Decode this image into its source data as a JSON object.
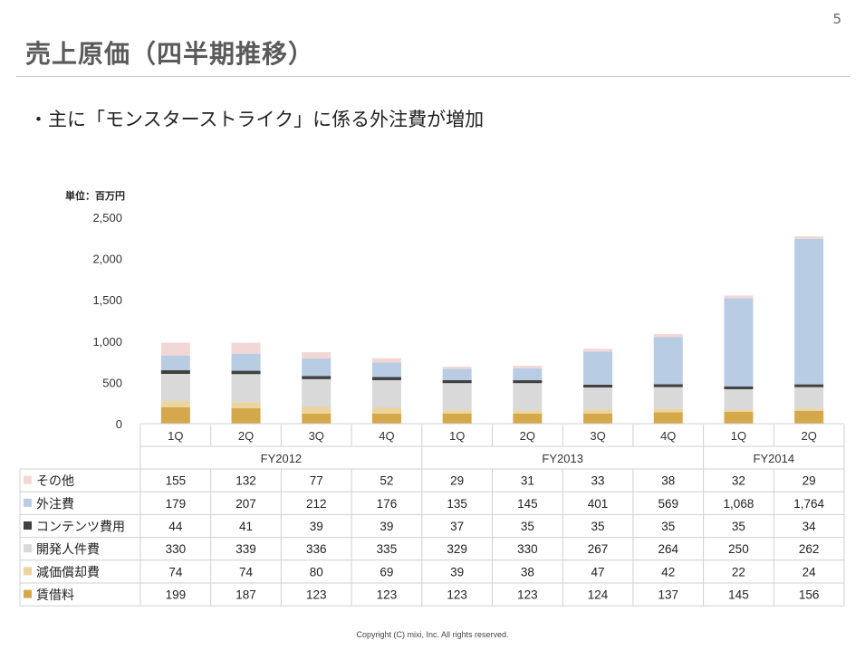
{
  "page_number": "5",
  "title": "売上原価（四半期推移）",
  "bullet": "・主に「モンスターストライク」に係る外注費が増加",
  "unit_label": "単位：百万円",
  "copyright": "Copyright (C) mixi, Inc. All rights reserved.",
  "chart_data": {
    "type": "bar",
    "stacked": true,
    "categories": [
      "1Q",
      "2Q",
      "3Q",
      "4Q",
      "1Q",
      "2Q",
      "3Q",
      "4Q",
      "1Q",
      "2Q"
    ],
    "fiscal_years": [
      {
        "label": "FY2012",
        "span": 4
      },
      {
        "label": "FY2013",
        "span": 4
      },
      {
        "label": "FY2014",
        "span": 2
      }
    ],
    "ylim": [
      0,
      2500
    ],
    "yticks": [
      "0",
      "500",
      "1,000",
      "1,500",
      "2,000",
      "2,500"
    ],
    "series": [
      {
        "name": "賃借料",
        "color": "#d4a84b",
        "values": [
          199,
          187,
          123,
          123,
          123,
          123,
          124,
          137,
          145,
          156
        ],
        "labels": [
          "199",
          "187",
          "123",
          "123",
          "123",
          "123",
          "124",
          "137",
          "145",
          "156"
        ]
      },
      {
        "name": "減価償却費",
        "color": "#ecd49c",
        "values": [
          74,
          74,
          80,
          69,
          39,
          38,
          47,
          42,
          22,
          24
        ],
        "labels": [
          "74",
          "74",
          "80",
          "69",
          "39",
          "38",
          "47",
          "42",
          "22",
          "24"
        ]
      },
      {
        "name": "開発人件費",
        "color": "#d9d9d9",
        "values": [
          330,
          339,
          336,
          335,
          329,
          330,
          267,
          264,
          250,
          262
        ],
        "labels": [
          "330",
          "339",
          "336",
          "335",
          "329",
          "330",
          "267",
          "264",
          "250",
          "262"
        ]
      },
      {
        "name": "コンテンツ費用",
        "color": "#404040",
        "values": [
          44,
          41,
          39,
          39,
          37,
          35,
          35,
          35,
          35,
          34
        ],
        "labels": [
          "44",
          "41",
          "39",
          "39",
          "37",
          "35",
          "35",
          "35",
          "35",
          "34"
        ]
      },
      {
        "name": "外注費",
        "color": "#b8cce4",
        "values": [
          179,
          207,
          212,
          176,
          135,
          145,
          401,
          569,
          1068,
          1764
        ],
        "labels": [
          "179",
          "207",
          "212",
          "176",
          "135",
          "145",
          "401",
          "569",
          "1,068",
          "1,764"
        ]
      },
      {
        "name": "その他",
        "color": "#f2d7d7",
        "values": [
          155,
          132,
          77,
          52,
          29,
          31,
          33,
          38,
          32,
          29
        ],
        "labels": [
          "155",
          "132",
          "77",
          "52",
          "29",
          "31",
          "33",
          "38",
          "32",
          "29"
        ]
      }
    ],
    "table_row_order": [
      "その他",
      "外注費",
      "コンテンツ費用",
      "開発人件費",
      "減価償却費",
      "賃借料"
    ],
    "legend": "left of table"
  }
}
